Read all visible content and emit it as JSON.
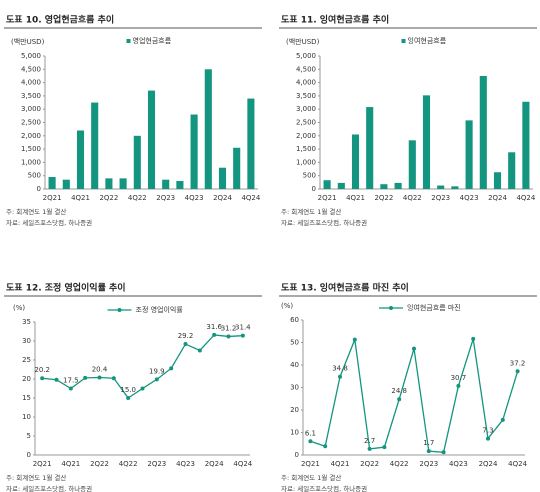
{
  "chart_data": [
    {
      "type": "bar",
      "title": "도표 10. 영업현금흐름 추이",
      "y_unit": "(백만USD)",
      "categories": [
        "2Q21",
        null,
        "4Q21",
        null,
        "2Q22",
        null,
        "4Q22",
        null,
        "2Q23",
        null,
        "4Q23",
        null,
        "2Q24",
        null,
        "4Q24"
      ],
      "series": [
        {
          "name": "영업현금흐름",
          "color": "#13957f",
          "values": [
            450,
            350,
            2200,
            3250,
            400,
            400,
            2000,
            3700,
            350,
            300,
            2800,
            4500,
            800,
            1550,
            3400
          ]
        }
      ],
      "ylim": [
        0,
        5000
      ],
      "yticks": [
        0,
        500,
        {
          "value": 1000,
          "label": "1,000"
        },
        {
          "value": 1500,
          "label": "1,500"
        },
        {
          "value": 2000,
          "label": "2,000"
        },
        {
          "value": 2500,
          "label": "2,500"
        },
        {
          "value": 3000,
          "label": "3,000"
        },
        {
          "value": 3500,
          "label": "3,500"
        },
        {
          "value": 4000,
          "label": "4,000"
        },
        {
          "value": 4500,
          "label": "4,500"
        },
        {
          "value": 5000,
          "label": "5,000"
        }
      ],
      "legend": "top",
      "notes": [
        "주: 회계연도 1월 결산",
        "자료: 세일즈포스닷컴, 하나증권"
      ]
    },
    {
      "type": "bar",
      "title": "도표 11. 잉여현금흐름 추이",
      "y_unit": "(백만USD)",
      "categories": [
        "2Q21",
        null,
        "4Q21",
        null,
        "2Q22",
        null,
        "4Q22",
        null,
        "2Q23",
        null,
        "4Q23",
        null,
        "2Q24",
        null,
        "4Q24"
      ],
      "series": [
        {
          "name": "잉여현금흐름",
          "color": "#13957f",
          "values": [
            330,
            230,
            2050,
            3080,
            180,
            230,
            1830,
            3520,
            130,
            100,
            2580,
            4250,
            630,
            1380,
            3280
          ]
        }
      ],
      "ylim": [
        0,
        5000
      ],
      "yticks": [
        0,
        500,
        {
          "value": 1000,
          "label": "1,000"
        },
        {
          "value": 1500,
          "label": "1,500"
        },
        {
          "value": 2000,
          "label": "2,000"
        },
        {
          "value": 2500,
          "label": "2,500"
        },
        {
          "value": 3000,
          "label": "3,000"
        },
        {
          "value": 3500,
          "label": "3,500"
        },
        {
          "value": 4000,
          "label": "4,000"
        },
        {
          "value": 4500,
          "label": "4,500"
        },
        {
          "value": 5000,
          "label": "5,000"
        }
      ],
      "legend": "top",
      "notes": [
        "주: 회계연도 1월 결산",
        "자료: 세일즈포스닷컴, 하나증권"
      ]
    },
    {
      "type": "line",
      "title": "도표 12. 조정 영업이익률 추이",
      "y_unit": "(%)",
      "categories": [
        "2Q21",
        null,
        "4Q21",
        null,
        "2Q22",
        null,
        "4Q22",
        null,
        "2Q23",
        null,
        "4Q23",
        null,
        "2Q24",
        null,
        "4Q24"
      ],
      "series": [
        {
          "name": "조정 영업이익률",
          "color": "#13957f",
          "values": [
            20.2,
            19.8,
            17.5,
            20.3,
            20.4,
            20.2,
            15.0,
            17.5,
            19.9,
            22.8,
            29.2,
            27.5,
            31.6,
            31.2,
            31.4
          ],
          "value_labels": [
            "20.2",
            null,
            "17.5",
            null,
            "20.4",
            null,
            "15.0",
            null,
            "19.9",
            null,
            "29.2",
            null,
            "31.6",
            "31.2",
            "31.4"
          ]
        }
      ],
      "ylim": [
        0,
        35
      ],
      "yticks": [
        0,
        5,
        10,
        15,
        20,
        25,
        30,
        35
      ],
      "legend": "top",
      "notes": [
        "주: 회계연도 1월 결산",
        "자료: 세일즈포스닷컴, 하나증권"
      ]
    },
    {
      "type": "line",
      "title": "도표 13. 잉여현금흐름 마진 추이",
      "y_unit": "(%)",
      "categories": [
        "2Q21",
        null,
        "4Q21",
        null,
        "2Q22",
        null,
        "4Q22",
        null,
        "2Q23",
        null,
        "4Q23",
        null,
        "2Q24",
        null,
        "4Q24"
      ],
      "series": [
        {
          "name": "잉여현금흐름 마진",
          "color": "#13957f",
          "values": [
            6.1,
            3.9,
            34.8,
            51.3,
            2.7,
            3.5,
            24.8,
            47.3,
            1.7,
            1.2,
            30.7,
            51.6,
            7.3,
            15.6,
            37.2
          ],
          "value_labels": [
            "6.1",
            null,
            "34.8",
            null,
            "2.7",
            null,
            "24.8",
            null,
            "1.7",
            null,
            "30.7",
            null,
            "7.3",
            null,
            "37.2"
          ]
        }
      ],
      "ylim": [
        0,
        60
      ],
      "yticks": [
        0,
        10,
        20,
        30,
        40,
        50,
        60
      ],
      "legend": "top",
      "notes": [
        "주: 회계연도 1월 결산",
        "자료: 세일즈포스닷컴, 하나증권"
      ]
    }
  ]
}
